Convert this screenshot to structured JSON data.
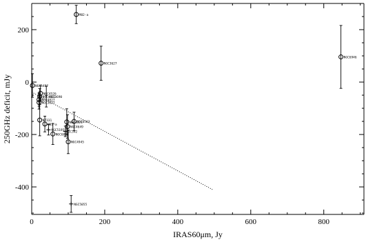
{
  "chart_data": {
    "type": "scatter",
    "title": "",
    "xlabel": "IRAS60μm, Jy",
    "ylabel": "250GHz deficit, mJy",
    "xlim": [
      0,
      910
    ],
    "ylim": [
      -505,
      300
    ],
    "xticks": [
      0,
      200,
      400,
      600,
      800
    ],
    "yticks": [
      200,
      0,
      -200,
      -400
    ],
    "grid": false,
    "legend": "none",
    "points": [
      {
        "x": 122,
        "y": 258,
        "err": 35,
        "marker": "circle",
        "label": "M82-a"
      },
      {
        "x": 190,
        "y": 72,
        "err": 65,
        "marker": "circle",
        "label": "NGC3627"
      },
      {
        "x": 847,
        "y": 96,
        "err": 120,
        "marker": "circle",
        "label": "NGC6946"
      },
      {
        "x": 40,
        "y": -55,
        "err": 40,
        "marker": "star",
        "label": "NGC3690"
      },
      {
        "x": 2,
        "y": -13,
        "err": 45,
        "marker": "circle",
        "label": "NGC5457"
      },
      {
        "x": 24,
        "y": -43,
        "err": 30,
        "marker": "circle",
        "label": "NGC4526"
      },
      {
        "x": 22,
        "y": -55,
        "err": 30,
        "marker": "circle",
        "label": "NGC4561"
      },
      {
        "x": 20,
        "y": -67,
        "err": 25,
        "marker": "circle",
        "label": "NGC4827"
      },
      {
        "x": 20,
        "y": -78,
        "err": 25,
        "marker": "circle",
        "label": "NGC3627"
      },
      {
        "x": 22,
        "y": -145,
        "err": 60,
        "marker": "circle",
        "label": "N7331"
      },
      {
        "x": 36,
        "y": -160,
        "err": 30,
        "marker": "circle",
        "label": "M82-a"
      },
      {
        "x": 96,
        "y": -152,
        "err": 50,
        "marker": "circle",
        "label": "NGC4321"
      },
      {
        "x": 98,
        "y": -170,
        "err": 45,
        "marker": "circle",
        "label": "NGC4649"
      },
      {
        "x": 116,
        "y": -150,
        "err": 35,
        "marker": "circle",
        "label": "NGC6503"
      },
      {
        "x": 46,
        "y": -182,
        "err": 20,
        "marker": "plus",
        "label": "NGC5195"
      },
      {
        "x": 92,
        "y": -188,
        "err": 20,
        "marker": "plus",
        "label": "IC342"
      },
      {
        "x": 58,
        "y": -198,
        "err": 40,
        "marker": "circle",
        "label": "NGC6810"
      },
      {
        "x": 100,
        "y": -228,
        "err": 45,
        "marker": "circle",
        "label": "NGC4945"
      },
      {
        "x": 108,
        "y": -465,
        "err": 32,
        "marker": "plus",
        "label": "NGC5055"
      }
    ],
    "fit_line": {
      "x": [
        0,
        495
      ],
      "y": [
        -38,
        -410
      ],
      "style": "dotted"
    }
  }
}
